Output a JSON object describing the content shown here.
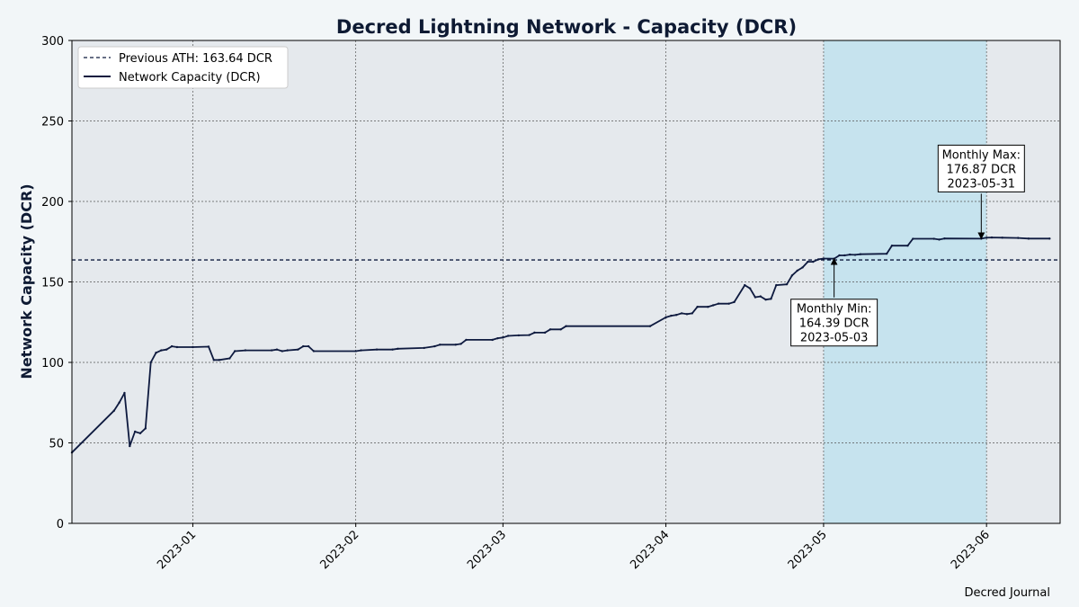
{
  "chart_data": {
    "type": "line",
    "title": "Decred Lightning Network - Capacity (DCR)",
    "xlabel": "",
    "ylabel": "Network Capacity (DCR)",
    "ylim": [
      0,
      300
    ],
    "yticks": [
      0,
      50,
      100,
      150,
      200,
      250,
      300
    ],
    "xlim": [
      "2022-12-09",
      "2023-06-15"
    ],
    "xticks": [
      "2023-01",
      "2023-02",
      "2023-03",
      "2023-04",
      "2023-05",
      "2023-06"
    ],
    "xtick_dates": [
      "2023-01-01",
      "2023-02-01",
      "2023-03-01",
      "2023-04-01",
      "2023-05-01",
      "2023-06-01"
    ],
    "grid": true,
    "highlight_range": [
      "2023-05-01",
      "2023-06-01"
    ],
    "reference_line": {
      "label": "Previous ATH: 163.64 DCR",
      "value": 163.64
    },
    "series": [
      {
        "name": "Network Capacity (DCR)",
        "color": "#0e1a3f",
        "points": [
          [
            "2022-12-09",
            44
          ],
          [
            "2022-12-17",
            70
          ],
          [
            "2022-12-18",
            75
          ],
          [
            "2022-12-19",
            81
          ],
          [
            "2022-12-20",
            48
          ],
          [
            "2022-12-21",
            57
          ],
          [
            "2022-12-22",
            56
          ],
          [
            "2022-12-23",
            59
          ],
          [
            "2022-12-24",
            100
          ],
          [
            "2022-12-25",
            106
          ],
          [
            "2022-12-26",
            107.5
          ],
          [
            "2022-12-27",
            108
          ],
          [
            "2022-12-28",
            110
          ],
          [
            "2022-12-29",
            109.5
          ],
          [
            "2023-01-01",
            109.5
          ],
          [
            "2023-01-04",
            109.8
          ],
          [
            "2023-01-05",
            101.5
          ],
          [
            "2023-01-06",
            101.5
          ],
          [
            "2023-01-08",
            102.5
          ],
          [
            "2023-01-09",
            107
          ],
          [
            "2023-01-11",
            107.5
          ],
          [
            "2023-01-16",
            107.5
          ],
          [
            "2023-01-17",
            108
          ],
          [
            "2023-01-18",
            107
          ],
          [
            "2023-01-19",
            107.5
          ],
          [
            "2023-01-21",
            108
          ],
          [
            "2023-01-22",
            110
          ],
          [
            "2023-01-23",
            110
          ],
          [
            "2023-01-24",
            107
          ],
          [
            "2023-02-01",
            107
          ],
          [
            "2023-02-02",
            107.5
          ],
          [
            "2023-02-05",
            108
          ],
          [
            "2023-02-08",
            108
          ],
          [
            "2023-02-09",
            108.5
          ],
          [
            "2023-02-14",
            109
          ],
          [
            "2023-02-16",
            110
          ],
          [
            "2023-02-17",
            111
          ],
          [
            "2023-02-20",
            111
          ],
          [
            "2023-02-21",
            111.5
          ],
          [
            "2023-02-22",
            114
          ],
          [
            "2023-02-27",
            114
          ],
          [
            "2023-02-28",
            115
          ],
          [
            "2023-03-01",
            115.5
          ],
          [
            "2023-03-02",
            116.5
          ],
          [
            "2023-03-04",
            116.8
          ],
          [
            "2023-03-06",
            117
          ],
          [
            "2023-03-07",
            118.5
          ],
          [
            "2023-03-09",
            118.5
          ],
          [
            "2023-03-10",
            120.5
          ],
          [
            "2023-03-12",
            120.5
          ],
          [
            "2023-03-13",
            122.5
          ],
          [
            "2023-03-29",
            122.5
          ],
          [
            "2023-04-01",
            128
          ],
          [
            "2023-04-02",
            129
          ],
          [
            "2023-04-03",
            129.5
          ],
          [
            "2023-04-04",
            130.5
          ],
          [
            "2023-04-05",
            130
          ],
          [
            "2023-04-06",
            130.5
          ],
          [
            "2023-04-07",
            134.5
          ],
          [
            "2023-04-09",
            134.5
          ],
          [
            "2023-04-10",
            135.5
          ],
          [
            "2023-04-11",
            136.5
          ],
          [
            "2023-04-13",
            136.5
          ],
          [
            "2023-04-14",
            137.5
          ],
          [
            "2023-04-16",
            148
          ],
          [
            "2023-04-17",
            146
          ],
          [
            "2023-04-18",
            140.5
          ],
          [
            "2023-04-19",
            141
          ],
          [
            "2023-04-20",
            139
          ],
          [
            "2023-04-21",
            139.5
          ],
          [
            "2023-04-22",
            148
          ],
          [
            "2023-04-24",
            148.5
          ],
          [
            "2023-04-25",
            154
          ],
          [
            "2023-04-26",
            157
          ],
          [
            "2023-04-27",
            159
          ],
          [
            "2023-04-28",
            162.5
          ],
          [
            "2023-04-29",
            162.5
          ],
          [
            "2023-04-30",
            164
          ],
          [
            "2023-05-01",
            164.5
          ],
          [
            "2023-05-03",
            164.39
          ],
          [
            "2023-05-04",
            166.5
          ],
          [
            "2023-05-05",
            166.5
          ],
          [
            "2023-05-06",
            167
          ],
          [
            "2023-05-07",
            166.8
          ],
          [
            "2023-05-08",
            167.2
          ],
          [
            "2023-05-13",
            167.5
          ],
          [
            "2023-05-14",
            172.5
          ],
          [
            "2023-05-17",
            172.5
          ],
          [
            "2023-05-18",
            176.8
          ],
          [
            "2023-05-22",
            176.8
          ],
          [
            "2023-05-23",
            176.3
          ],
          [
            "2023-05-24",
            177
          ],
          [
            "2023-05-31",
            176.87
          ],
          [
            "2023-06-01",
            177.5
          ],
          [
            "2023-06-02",
            177.6
          ],
          [
            "2023-06-04",
            177.5
          ],
          [
            "2023-06-07",
            177.3
          ],
          [
            "2023-06-09",
            176.9
          ],
          [
            "2023-06-13",
            176.9
          ]
        ]
      }
    ],
    "legend": [
      "Previous ATH: 163.64 DCR",
      "Network Capacity (DCR)"
    ],
    "legend_position": "upper-left",
    "annotations": [
      {
        "lines": [
          "Monthly Min:",
          "164.39 DCR",
          "2023-05-03"
        ],
        "date": "2023-05-03",
        "value": 164.39,
        "placement": "below"
      },
      {
        "lines": [
          "Monthly Max:",
          "176.87 DCR",
          "2023-05-31"
        ],
        "date": "2023-05-31",
        "value": 176.87,
        "placement": "above"
      }
    ],
    "credit": "Decred Journal"
  }
}
